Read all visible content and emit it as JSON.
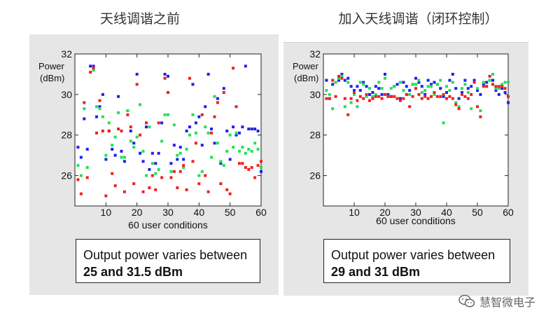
{
  "headings": {
    "left": "天线调谐之前",
    "right": "加入天线调谐（闭环控制）"
  },
  "captions": {
    "left": {
      "line1": "Output power varies between",
      "line2": "25 and 31.5 dBm"
    },
    "right": {
      "line1": "Output power varies between",
      "line2": "29 and 31 dBm"
    }
  },
  "watermark": {
    "text": "慧智微电子",
    "icon": "wechat-icon"
  },
  "colors": {
    "red": "#f02020",
    "green": "#22e05a",
    "blue": "#2020ee",
    "panel": "#e6e6e6"
  },
  "chart_data": [
    {
      "type": "scatter",
      "title": "",
      "xlabel": "60 user conditions",
      "ylabel": "Power (dBm)",
      "xlim": [
        0,
        60
      ],
      "ylim": [
        24.5,
        32
      ],
      "xticks": [
        10,
        20,
        30,
        40,
        50,
        60
      ],
      "yticks": [
        26,
        28,
        30,
        32
      ],
      "grid": false,
      "series": [
        {
          "color": "#2020ee",
          "x": [
            1,
            2,
            3,
            4,
            5,
            6,
            7,
            8,
            9,
            10,
            11,
            12,
            13,
            14,
            15,
            16,
            17,
            18,
            19,
            20,
            21,
            22,
            23,
            24,
            25,
            26,
            27,
            28,
            29,
            30,
            31,
            32,
            33,
            34,
            35,
            36,
            37,
            38,
            39,
            40,
            41,
            42,
            43,
            44,
            45,
            46,
            47,
            48,
            49,
            50,
            51,
            52,
            53,
            54,
            55,
            56,
            57,
            58,
            59,
            60
          ],
          "y": [
            27.4,
            26.9,
            28.8,
            27.3,
            31.4,
            31.4,
            28.9,
            29.4,
            30.0,
            26.8,
            28.2,
            27.3,
            27.0,
            29.9,
            27.2,
            26.7,
            29.2,
            28.2,
            27.6,
            31.0,
            27.1,
            26.7,
            28.4,
            26.3,
            27.1,
            26.6,
            27.1,
            28.6,
            31.0,
            30.9,
            26.6,
            27.5,
            26.8,
            27.4,
            26.8,
            28.2,
            28.4,
            30.5,
            28.6,
            28.9,
            27.5,
            29.4,
            31.0,
            28.3,
            27.6,
            29.8,
            26.6,
            30.3,
            28.2,
            26.8,
            28.4,
            28.0,
            28.1,
            28.4,
            31.4,
            28.3,
            28.3,
            28.3,
            28.2,
            26.2
          ]
        },
        {
          "color": "#22e05a",
          "x": [
            1,
            2,
            3,
            4,
            6,
            7,
            8,
            9,
            10,
            11,
            12,
            13,
            14,
            15,
            16,
            17,
            18,
            19,
            20,
            21,
            22,
            23,
            24,
            25,
            26,
            27,
            28,
            29,
            30,
            31,
            32,
            33,
            34,
            35,
            36,
            37,
            38,
            39,
            40,
            41,
            42,
            43,
            44,
            45,
            46,
            47,
            48,
            49,
            50,
            51,
            52,
            53,
            54,
            55,
            56,
            57,
            58,
            59,
            60
          ],
          "y": [
            26.5,
            26.0,
            29.3,
            26.4,
            31.2,
            29.4,
            29.3,
            28.9,
            27.0,
            28.6,
            27.5,
            27.9,
            29.1,
            26.9,
            26.9,
            29.2,
            27.7,
            27.4,
            27.9,
            29.5,
            27.2,
            26.0,
            28.4,
            26.6,
            26.1,
            26.3,
            27.7,
            29.0,
            29.0,
            26.2,
            28.5,
            27.0,
            27.1,
            26.4,
            27.3,
            28.0,
            29.0,
            28.1,
            26.0,
            26.2,
            28.4,
            28.1,
            26.9,
            29.9,
            27.6,
            26.7,
            26.5,
            27.2,
            28.0,
            27.4,
            28.1,
            27.2,
            27.4,
            27.1,
            27.3,
            27.2,
            27.6,
            27.3,
            26.4
          ]
        },
        {
          "color": "#f02020",
          "x": [
            1,
            2,
            3,
            4,
            5,
            6,
            7,
            8,
            9,
            10,
            11,
            12,
            13,
            14,
            15,
            16,
            17,
            18,
            19,
            20,
            21,
            22,
            23,
            24,
            25,
            26,
            27,
            28,
            29,
            30,
            31,
            32,
            33,
            34,
            35,
            36,
            37,
            38,
            39,
            40,
            41,
            42,
            43,
            44,
            45,
            46,
            47,
            48,
            49,
            50,
            51,
            52,
            53,
            54,
            55,
            56,
            57,
            58,
            59,
            60
          ],
          "y": [
            25.8,
            25.1,
            29.6,
            25.9,
            31.1,
            31.3,
            28.1,
            29.7,
            28.2,
            25.0,
            28.2,
            26.1,
            25.5,
            28.3,
            28.2,
            25.2,
            29.0,
            28.4,
            25.6,
            30.5,
            28.0,
            25.2,
            28.6,
            25.4,
            26.0,
            25.3,
            28.6,
            25.9,
            30.8,
            30.1,
            25.9,
            26.2,
            25.4,
            26.2,
            26.5,
            25.3,
            30.8,
            26.7,
            27.6,
            25.6,
            29.0,
            26.0,
            25.2,
            28.1,
            28.9,
            29.6,
            25.6,
            30.1,
            25.3,
            25.1,
            31.3,
            29.4,
            26.6,
            26.6,
            26.4,
            26.3,
            26.4,
            25.9,
            26.5,
            26.7
          ]
        }
      ]
    },
    {
      "type": "scatter",
      "title": "",
      "xlabel": "60 user conditions",
      "ylabel": "Power (dBm)",
      "xlim": [
        0,
        60
      ],
      "ylim": [
        24.5,
        32
      ],
      "xticks": [
        10,
        20,
        30,
        40,
        50,
        60
      ],
      "yticks": [
        26,
        28,
        30,
        32
      ],
      "grid": false,
      "series": [
        {
          "color": "#2020ee",
          "x": [
            1,
            2,
            3,
            4,
            5,
            6,
            7,
            8,
            9,
            10,
            11,
            12,
            13,
            14,
            15,
            16,
            17,
            18,
            19,
            20,
            21,
            22,
            23,
            24,
            25,
            26,
            27,
            28,
            29,
            30,
            31,
            32,
            33,
            34,
            35,
            36,
            37,
            38,
            39,
            40,
            41,
            42,
            43,
            44,
            45,
            46,
            47,
            48,
            49,
            50,
            51,
            52,
            53,
            54,
            55,
            56,
            57,
            58,
            59,
            60
          ],
          "y": [
            30.7,
            29.8,
            30.5,
            30.6,
            30.7,
            31.0,
            30.7,
            30.8,
            30.4,
            30.2,
            30.4,
            30.2,
            30.6,
            30.4,
            30.0,
            30.1,
            30.4,
            30.3,
            30.0,
            31.0,
            30.0,
            29.9,
            30.4,
            30.5,
            29.8,
            30.6,
            30.4,
            30.2,
            30.5,
            30.8,
            30.6,
            30.4,
            30.0,
            30.7,
            30.5,
            30.6,
            30.5,
            30.3,
            29.9,
            30.1,
            30.7,
            31.0,
            30.3,
            29.8,
            30.1,
            30.7,
            30.3,
            30.4,
            30.7,
            30.2,
            30.0,
            30.5,
            30.6,
            30.7,
            30.7,
            30.2,
            30.0,
            30.3,
            30.1,
            29.6
          ]
        },
        {
          "color": "#22e05a",
          "x": [
            1,
            2,
            3,
            4,
            5,
            6,
            7,
            8,
            9,
            10,
            11,
            12,
            13,
            14,
            15,
            16,
            17,
            18,
            19,
            20,
            21,
            22,
            23,
            24,
            25,
            26,
            27,
            28,
            29,
            30,
            31,
            32,
            33,
            34,
            35,
            36,
            37,
            38,
            39,
            40,
            41,
            42,
            43,
            44,
            45,
            46,
            47,
            48,
            49,
            50,
            51,
            52,
            53,
            54,
            55,
            56,
            57,
            58,
            59,
            60
          ],
          "y": [
            30.2,
            30.0,
            29.3,
            30.6,
            30.8,
            30.9,
            29.4,
            30.6,
            29.6,
            30.0,
            29.4,
            30.6,
            30.5,
            29.9,
            30.3,
            29.9,
            30.0,
            30.6,
            30.3,
            30.8,
            29.9,
            30.3,
            30.4,
            29.8,
            30.6,
            30.2,
            30.0,
            30.0,
            30.5,
            30.5,
            30.7,
            30.1,
            30.2,
            30.4,
            30.4,
            30.0,
            30.5,
            30.7,
            28.6,
            30.4,
            30.2,
            30.6,
            29.6,
            29.4,
            30.3,
            30.5,
            30.1,
            29.3,
            30.6,
            30.3,
            29.2,
            30.6,
            30.4,
            30.7,
            31.0,
            30.3,
            30.3,
            30.5,
            30.6,
            30.6
          ]
        },
        {
          "color": "#f02020",
          "x": [
            1,
            2,
            3,
            4,
            5,
            6,
            7,
            8,
            9,
            10,
            11,
            12,
            13,
            14,
            15,
            16,
            17,
            18,
            19,
            20,
            21,
            22,
            23,
            24,
            25,
            26,
            27,
            28,
            29,
            30,
            31,
            32,
            33,
            34,
            35,
            36,
            37,
            38,
            39,
            40,
            41,
            42,
            43,
            44,
            45,
            46,
            47,
            48,
            49,
            50,
            51,
            52,
            53,
            54,
            55,
            56,
            57,
            58,
            59,
            60
          ],
          "y": [
            29.8,
            29.8,
            30.7,
            29.9,
            30.9,
            30.8,
            29.8,
            29.0,
            29.8,
            30.1,
            29.7,
            29.9,
            29.8,
            30.0,
            29.7,
            29.8,
            29.9,
            29.9,
            29.8,
            30.0,
            29.9,
            29.9,
            29.9,
            29.8,
            29.7,
            29.8,
            30.0,
            29.4,
            29.9,
            30.3,
            30.0,
            29.8,
            29.9,
            29.8,
            29.9,
            30.1,
            29.9,
            29.9,
            30.0,
            29.8,
            29.9,
            29.8,
            29.5,
            29.3,
            30.0,
            29.9,
            29.8,
            30.0,
            30.6,
            29.4,
            28.9,
            30.4,
            30.4,
            30.9,
            30.5,
            30.4,
            30.4,
            30.4,
            30.3,
            29.9
          ]
        }
      ]
    }
  ]
}
